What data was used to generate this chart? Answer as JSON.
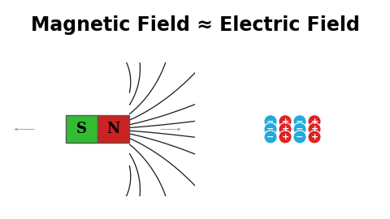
{
  "title": "Magnetic Field ≈ Electric Field",
  "title_fontsize": 17,
  "title_fontweight": "bold",
  "bg_left": "#ffffff",
  "bg_right": "#000000",
  "magnet_green": "#33bb33",
  "magnet_red": "#cc2222",
  "S_label": "S",
  "N_label": "N",
  "charge_plus_color": "#dd2222",
  "charge_minus_color": "#22aadd",
  "arrow_color": "#ffffff",
  "charge_rows": 3,
  "charge_cols": 4,
  "charge_pattern": [
    [
      "b",
      "r",
      "b",
      "r"
    ],
    [
      "b",
      "r",
      "b",
      "r"
    ],
    [
      "b",
      "r",
      "b",
      "r"
    ]
  ]
}
